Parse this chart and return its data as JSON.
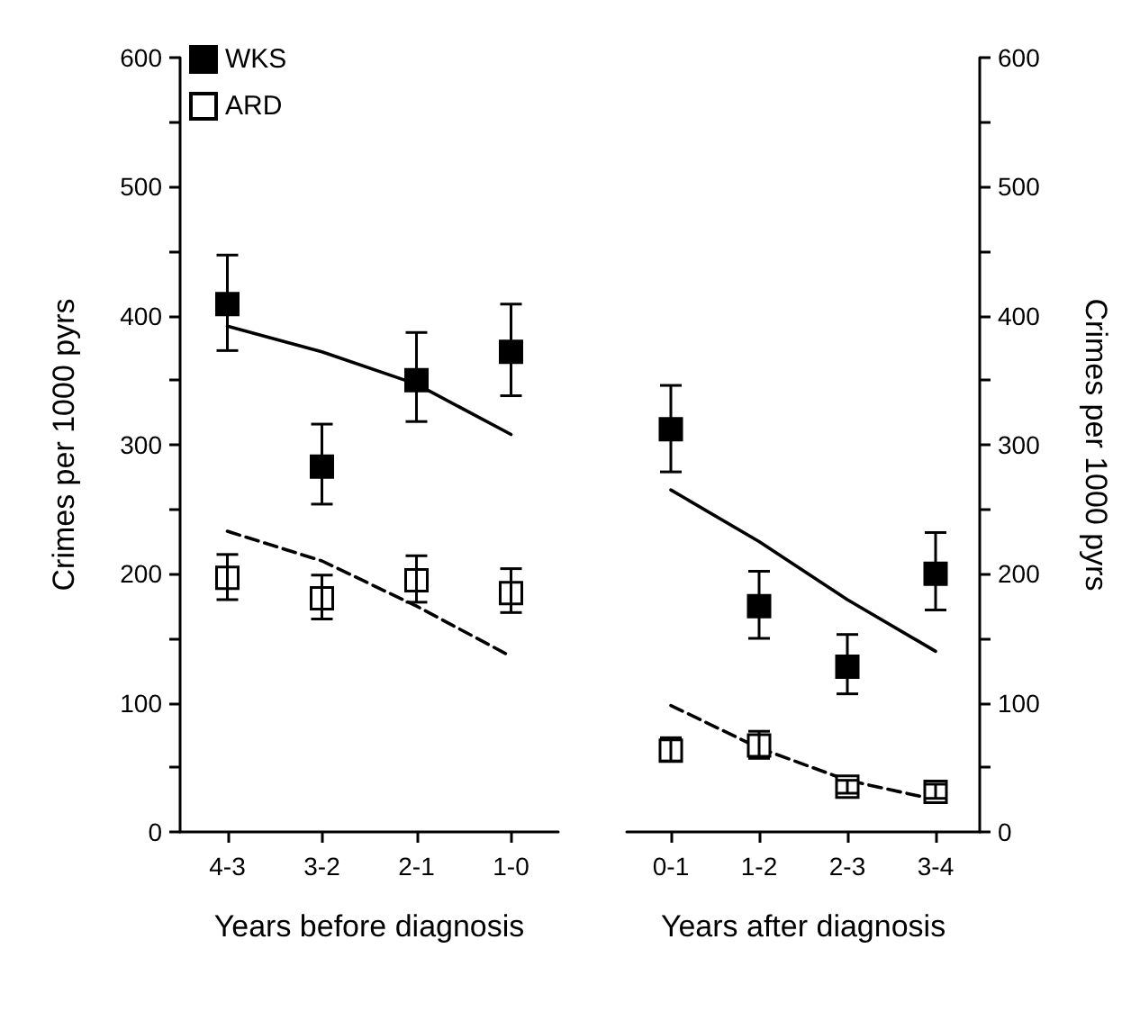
{
  "chart_data": [
    {
      "type": "scatter",
      "xlabel": "Years before diagnosis",
      "ylabel": "Crimes per 1000 pyrs",
      "categories": [
        "4-3",
        "3-2",
        "2-1",
        "1-0"
      ],
      "ylim": [
        0,
        600
      ],
      "yticks": [
        0,
        {
          "value": 50,
          "label": null
        },
        100,
        {
          "value": 150,
          "label": null
        },
        200,
        {
          "value": 250,
          "label": null
        },
        300,
        {
          "value": 350,
          "label": null
        },
        400,
        {
          "value": 450,
          "label": null
        },
        500,
        {
          "value": 550,
          "label": null
        },
        600
      ],
      "legend": "top left",
      "marker": "square",
      "series": [
        {
          "name": "WKS",
          "color": "#000000",
          "values": [
            409,
            283,
            350,
            372
          ],
          "errors": [
            [
              373,
              447
            ],
            [
              254,
              316
            ],
            [
              318,
              387
            ],
            [
              338,
              409
            ]
          ]
        },
        {
          "name": "ARD",
          "color": "#ffffff",
          "values": [
            197,
            181,
            195,
            185
          ],
          "errors": [
            [
              180,
              215
            ],
            [
              165,
              199
            ],
            [
              178,
              214
            ],
            [
              170,
              204
            ]
          ]
        },
        {
          "type": "line",
          "color": "#000000",
          "line_style": "solid",
          "marker": "none",
          "values": [
            392,
            372,
            347,
            308
          ]
        },
        {
          "type": "line",
          "color": "#000000",
          "line_style": "dashed",
          "marker": "none",
          "values": [
            233,
            210,
            175,
            136
          ]
        }
      ]
    },
    {
      "type": "scatter",
      "xlabel": "Years after diagnosis",
      "y2label": "Crimes per 1000 pyrs",
      "categories": [
        "0-1",
        "1-2",
        "2-3",
        "3-4"
      ],
      "y2lim": [
        0,
        600
      ],
      "y2ticks": [
        0,
        {
          "value": 50,
          "label": null
        },
        100,
        {
          "value": 150,
          "label": null
        },
        200,
        {
          "value": 250,
          "label": null
        },
        300,
        {
          "value": 350,
          "label": null
        },
        400,
        {
          "value": 450,
          "label": null
        },
        500,
        {
          "value": 550,
          "label": null
        },
        600
      ],
      "marker": "square",
      "series": [
        {
          "color": "#000000",
          "axis": "y2",
          "values": [
            312,
            175,
            128,
            200
          ],
          "errors": [
            [
              279,
              346
            ],
            [
              150,
              202
            ],
            [
              107,
              153
            ],
            [
              172,
              232
            ]
          ]
        },
        {
          "color": "#ffffff",
          "axis": "y2",
          "values": [
            63,
            67,
            35,
            31
          ],
          "errors": [
            [
              55,
              73
            ],
            [
              57,
              78
            ],
            [
              30,
              40
            ],
            [
              26,
              37
            ]
          ]
        },
        {
          "type": "line",
          "axis": "y2",
          "color": "#000000",
          "line_style": "solid",
          "marker": "none",
          "values": [
            265,
            225,
            180,
            140
          ]
        },
        {
          "type": "line",
          "axis": "y2",
          "color": "#000000",
          "line_style": "dashed",
          "marker": "none",
          "values": [
            98,
            65,
            40,
            25
          ]
        }
      ]
    }
  ]
}
